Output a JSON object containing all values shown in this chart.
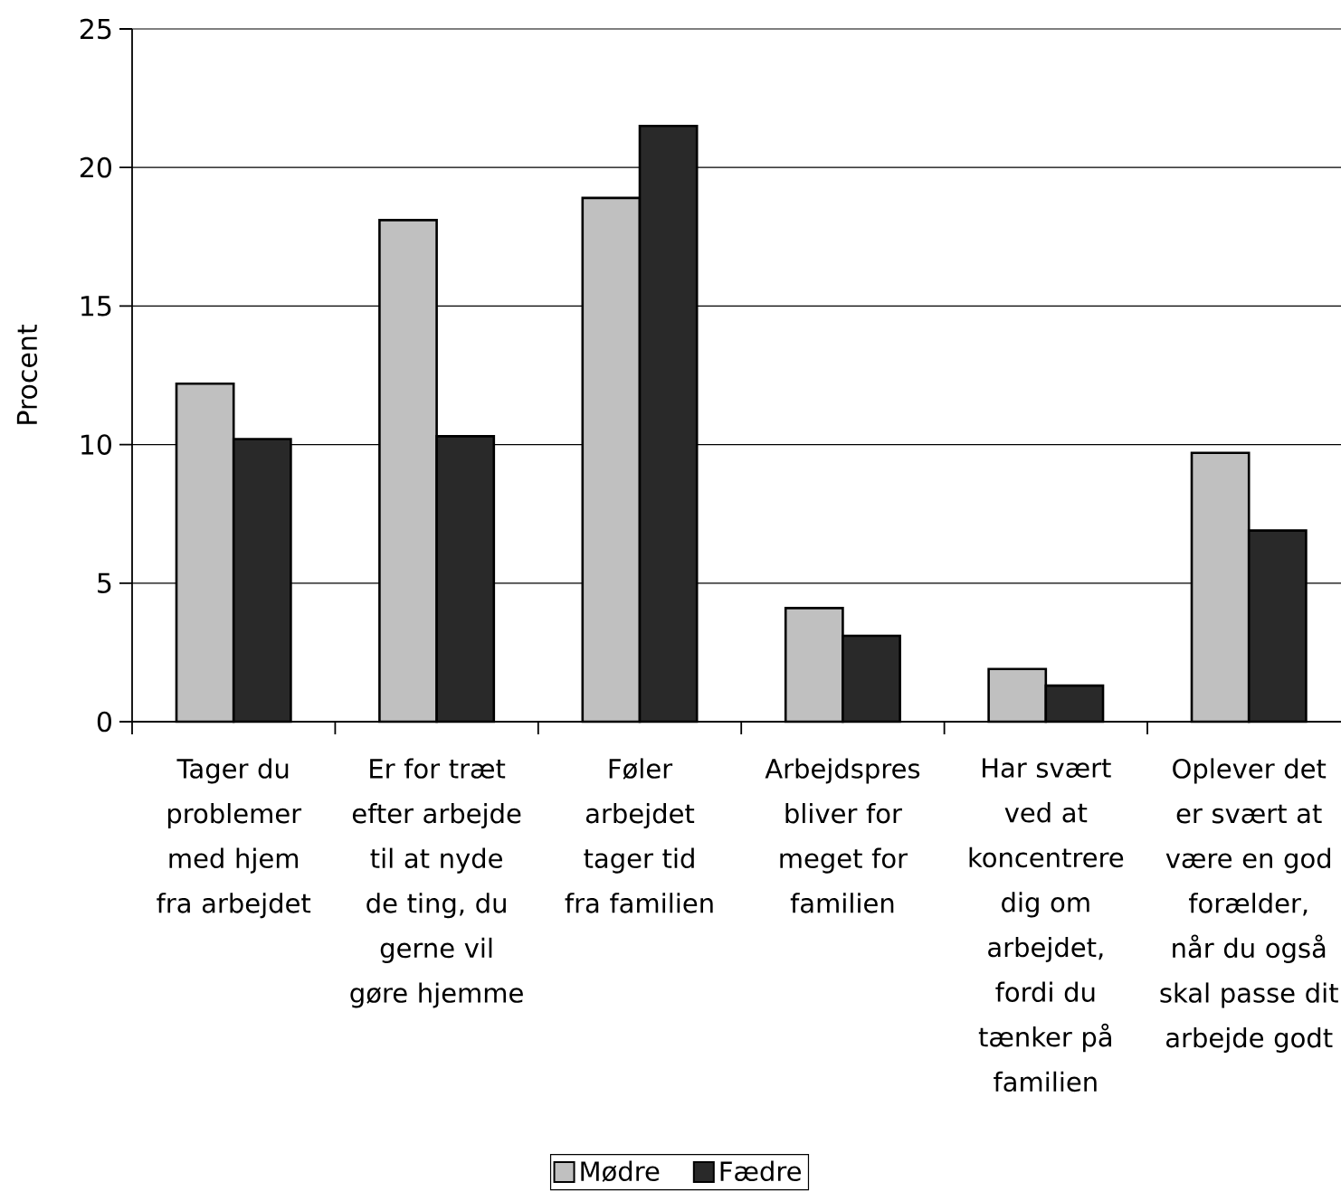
{
  "chart_data": {
    "type": "bar",
    "ylabel": "Procent",
    "categories": [
      "Tager du problemer med hjem fra arbejdet",
      "Er for træt efter arbejde til at nyde de ting, du gerne vil gøre hjemme",
      "Føler arbejdet tager tid fra familien",
      "Arbejdspres bliver for meget for familien",
      "Har svært ved at koncentrere dig om arbejdet, fordi du tænker på familien",
      "Oplever det er svært at være en god forælder, når du også skal passe dit arbejde godt"
    ],
    "series": [
      {
        "name": "Mødre",
        "color": "#c0c0c0",
        "values": [
          12.2,
          18.1,
          18.9,
          4.1,
          1.9,
          9.7
        ]
      },
      {
        "name": "Fædre",
        "color": "#292929",
        "values": [
          10.2,
          10.3,
          21.5,
          3.1,
          1.3,
          6.9
        ]
      }
    ],
    "ylim": [
      0,
      25
    ],
    "yticks": [
      0,
      5,
      10,
      15,
      20,
      25
    ],
    "grid": "y",
    "legend": "bottom"
  }
}
